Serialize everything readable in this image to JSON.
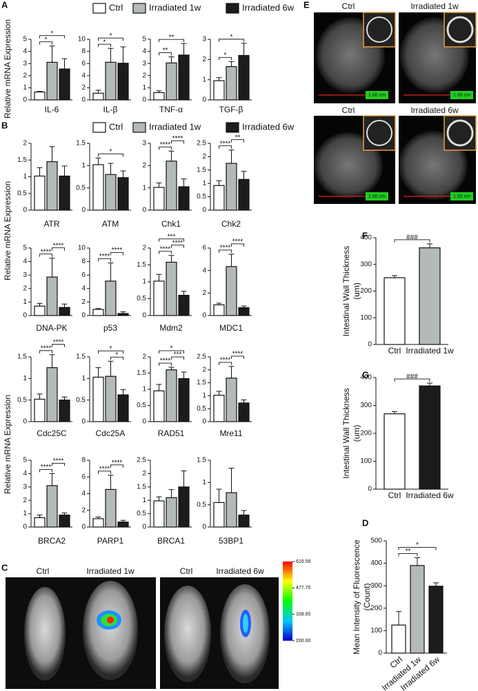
{
  "figure": {
    "panel_letters": [
      "A",
      "B",
      "C",
      "E",
      "F",
      "G",
      "D"
    ],
    "axis_titles": [
      "Relative mRNA Expression",
      "Relative mRNA Expression",
      "Relative mRNA Expression"
    ],
    "legends": [
      [
        {
          "name": "Ctrl",
          "color": "#ffffff"
        },
        {
          "name": "Irradiated 1w",
          "color": "#b3bab7"
        },
        {
          "name": "Irradiated 6w",
          "color": "#1c1c1c"
        }
      ],
      [
        {
          "name": "Ctrl",
          "color": "#ffffff"
        },
        {
          "name": "Irradiated 1w",
          "color": "#b3bab7"
        },
        {
          "name": "Irradiated 6w",
          "color": "#1c1c1c"
        }
      ]
    ],
    "imaging_c": {
      "labels": [
        "Ctrl",
        "Irradiated 1w",
        "Ctrl",
        "Irradiated 6w"
      ],
      "colorbar_ticks": [
        616.56,
        {
          "value": 477.7,
          "label": "477.70"
        },
        338.85,
        {
          "value": 200,
          "label": "200.00"
        }
      ]
    },
    "imaging_e": {
      "labels": [
        "Ctrl",
        "Irradiated 1w",
        "Ctrl",
        "Irradiated 6w"
      ],
      "scale_labels": [
        "1.00 cm",
        "1.00 cm",
        "1.00 cm",
        "1.00 cm"
      ]
    }
  },
  "chart_data": [
    {
      "type": "bar",
      "xlabel": "IL-6",
      "values": [
        0.65,
        3.1,
        2.55
      ],
      "errors": [
        0.05,
        1.35,
        0.85
      ],
      "colors": [
        "#ffffff",
        "#b3bab7",
        "#1c1c1c"
      ],
      "ylim": [
        0,
        5
      ],
      "yticks": [
        0,
        1,
        2,
        3,
        4,
        5
      ],
      "significance": [
        {
          "between": [
            0,
            1
          ],
          "label": "*"
        },
        {
          "between": [
            0,
            2
          ],
          "label": "*"
        }
      ]
    },
    {
      "type": "bar",
      "xlabel": "IL-β",
      "values": [
        1.1,
        6.2,
        6.05
      ],
      "errors": [
        0.5,
        2.3,
        2.7
      ],
      "colors": [
        "#ffffff",
        "#b3bab7",
        "#1c1c1c"
      ],
      "ylim": [
        0,
        10
      ],
      "yticks": [
        0,
        2,
        4,
        6,
        8,
        10
      ],
      "significance": [
        {
          "between": [
            0,
            1
          ],
          "label": "*"
        },
        {
          "between": [
            0,
            2
          ],
          "label": "*"
        }
      ]
    },
    {
      "type": "bar",
      "xlabel": "TNF-α",
      "values": [
        0.6,
        3.05,
        3.7
      ],
      "errors": [
        0.15,
        0.5,
        0.95
      ],
      "colors": [
        "#ffffff",
        "#b3bab7",
        "#1c1c1c"
      ],
      "ylim": [
        0,
        5
      ],
      "yticks": [
        0,
        1,
        2,
        3,
        4,
        5
      ],
      "significance": [
        {
          "between": [
            0,
            1
          ],
          "label": "**"
        },
        {
          "between": [
            0,
            2
          ],
          "label": "**"
        }
      ]
    },
    {
      "type": "bar",
      "xlabel": "TGF-β",
      "values": [
        0.95,
        1.65,
        2.2
      ],
      "errors": [
        0.15,
        0.25,
        0.6
      ],
      "colors": [
        "#ffffff",
        "#b3bab7",
        "#1c1c1c"
      ],
      "ylim": [
        0,
        3
      ],
      "yticks": [
        0,
        1,
        2,
        3
      ],
      "significance": [
        {
          "between": [
            0,
            1
          ],
          "label": "*"
        },
        {
          "between": [
            0,
            2
          ],
          "label": "*"
        }
      ]
    },
    {
      "type": "bar",
      "xlabel": "ATR",
      "values": [
        1.02,
        1.45,
        1.02
      ],
      "errors": [
        0.25,
        0.45,
        0.3
      ],
      "colors": [
        "#ffffff",
        "#b3bab7",
        "#1c1c1c"
      ],
      "ylim": [
        0,
        2
      ],
      "yticks": [
        0,
        0.5,
        1,
        1.5,
        2
      ],
      "significance": []
    },
    {
      "type": "bar",
      "xlabel": "ATM",
      "values": [
        1.02,
        0.8,
        0.73
      ],
      "errors": [
        0.15,
        0.25,
        0.15
      ],
      "colors": [
        "#ffffff",
        "#b3bab7",
        "#1c1c1c"
      ],
      "ylim": [
        0,
        1.5
      ],
      "yticks": [
        0,
        0.5,
        1,
        1.5
      ],
      "significance": [
        {
          "between": [
            0,
            2
          ],
          "label": "*"
        }
      ]
    },
    {
      "type": "bar",
      "xlabel": "Chk1",
      "values": [
        1.02,
        2.2,
        1.05
      ],
      "errors": [
        0.2,
        0.45,
        0.35
      ],
      "colors": [
        "#ffffff",
        "#b3bab7",
        "#1c1c1c"
      ],
      "ylim": [
        0,
        3
      ],
      "yticks": [
        0,
        1,
        2,
        3
      ],
      "significance": [
        {
          "between": [
            0,
            1
          ],
          "label": "****"
        },
        {
          "between": [
            1,
            2
          ],
          "label": "****"
        }
      ]
    },
    {
      "type": "bar",
      "xlabel": "Chk2",
      "values": [
        0.92,
        1.75,
        1.15
      ],
      "errors": [
        0.18,
        0.5,
        0.3
      ],
      "colors": [
        "#ffffff",
        "#b3bab7",
        "#1c1c1c"
      ],
      "ylim": [
        0,
        2.5
      ],
      "yticks": [
        0,
        0.5,
        1,
        1.5,
        2,
        2.5
      ],
      "significance": [
        {
          "between": [
            0,
            1
          ],
          "label": "****"
        },
        {
          "between": [
            1,
            2
          ],
          "label": "**"
        }
      ]
    },
    {
      "type": "bar",
      "xlabel": "DNA-PK",
      "values": [
        0.7,
        2.85,
        0.6
      ],
      "errors": [
        0.2,
        1.4,
        0.25
      ],
      "colors": [
        "#ffffff",
        "#b3bab7",
        "#1c1c1c"
      ],
      "ylim": [
        0,
        5
      ],
      "yticks": [
        0,
        1,
        2,
        3,
        4,
        5
      ],
      "significance": [
        {
          "between": [
            0,
            1
          ],
          "label": "****"
        },
        {
          "between": [
            1,
            2
          ],
          "label": "****"
        }
      ]
    },
    {
      "type": "bar",
      "xlabel": "p53",
      "values": [
        0.9,
        5.1,
        0.3
      ],
      "errors": [
        0.15,
        2.7,
        0.25
      ],
      "colors": [
        "#ffffff",
        "#b3bab7",
        "#1c1c1c"
      ],
      "ylim": [
        0,
        10
      ],
      "yticks": [
        0,
        2,
        4,
        6,
        8,
        10
      ],
      "significance": [
        {
          "between": [
            0,
            1
          ],
          "label": "****"
        },
        {
          "between": [
            1,
            2
          ],
          "label": "****"
        }
      ]
    },
    {
      "type": "bar",
      "xlabel": "Mdm2",
      "values": [
        1.02,
        1.58,
        0.6
      ],
      "errors": [
        0.2,
        0.2,
        0.12
      ],
      "colors": [
        "#ffffff",
        "#b3bab7",
        "#1c1c1c"
      ],
      "ylim": [
        0,
        2
      ],
      "yticks": [
        0,
        0.5,
        1,
        1.5,
        2
      ],
      "significance": [
        {
          "between": [
            0,
            1
          ],
          "label": "****"
        },
        {
          "between": [
            1,
            2
          ],
          "label": "****"
        },
        {
          "between": [
            0,
            2
          ],
          "label": "***"
        }
      ]
    },
    {
      "type": "bar",
      "xlabel": "MDC1",
      "values": [
        0.95,
        4.35,
        0.7
      ],
      "errors": [
        0.15,
        1.1,
        0.15
      ],
      "colors": [
        "#ffffff",
        "#b3bab7",
        "#1c1c1c"
      ],
      "ylim": [
        0,
        6
      ],
      "yticks": [
        0,
        2,
        4,
        6
      ],
      "significance": [
        {
          "between": [
            0,
            1
          ],
          "label": "****"
        },
        {
          "between": [
            1,
            2
          ],
          "label": "****"
        }
      ]
    },
    {
      "type": "bar",
      "xlabel": "Cdc25C",
      "values": [
        0.52,
        1.25,
        0.5
      ],
      "errors": [
        0.12,
        0.3,
        0.07
      ],
      "colors": [
        "#ffffff",
        "#b3bab7",
        "#1c1c1c"
      ],
      "ylim": [
        0,
        1.5
      ],
      "yticks": [
        0,
        0.5,
        1,
        1.5
      ],
      "significance": [
        {
          "between": [
            0,
            1
          ],
          "label": "****"
        },
        {
          "between": [
            1,
            2
          ],
          "label": "****"
        }
      ]
    },
    {
      "type": "bar",
      "xlabel": "Cdc25A",
      "values": [
        1.03,
        1.05,
        0.62
      ],
      "errors": [
        0.22,
        0.35,
        0.12
      ],
      "colors": [
        "#ffffff",
        "#b3bab7",
        "#1c1c1c"
      ],
      "ylim": [
        0,
        1.5
      ],
      "yticks": [
        0,
        0.5,
        1,
        1.5
      ],
      "significance": [
        {
          "between": [
            1,
            2
          ],
          "label": "*"
        },
        {
          "between": [
            0,
            2
          ],
          "label": "*"
        }
      ]
    },
    {
      "type": "bar",
      "xlabel": "RAD51",
      "values": [
        0.95,
        1.6,
        1.33
      ],
      "errors": [
        0.2,
        0.08,
        0.2
      ],
      "colors": [
        "#ffffff",
        "#b3bab7",
        "#1c1c1c"
      ],
      "ylim": [
        0,
        2
      ],
      "yticks": [
        0,
        0.5,
        1,
        1.5,
        2
      ],
      "significance": [
        {
          "between": [
            0,
            1
          ],
          "label": "****"
        },
        {
          "between": [
            1,
            2
          ],
          "label": "***"
        },
        {
          "between": [
            0,
            2
          ],
          "label": "*"
        }
      ]
    },
    {
      "type": "bar",
      "xlabel": "Mre11",
      "values": [
        1.02,
        1.68,
        0.72
      ],
      "errors": [
        0.15,
        0.45,
        0.12
      ],
      "colors": [
        "#ffffff",
        "#b3bab7",
        "#1c1c1c"
      ],
      "ylim": [
        0,
        2.5
      ],
      "yticks": [
        0,
        0.5,
        1,
        1.5,
        2,
        2.5
      ],
      "significance": [
        {
          "between": [
            0,
            1
          ],
          "label": "****"
        },
        {
          "between": [
            1,
            2
          ],
          "label": "****"
        }
      ]
    },
    {
      "type": "bar",
      "xlabel": "BRCA2",
      "values": [
        0.7,
        3.1,
        0.9
      ],
      "errors": [
        0.2,
        0.9,
        0.15
      ],
      "colors": [
        "#ffffff",
        "#b3bab7",
        "#1c1c1c"
      ],
      "ylim": [
        0,
        5
      ],
      "yticks": [
        0,
        1,
        2,
        3,
        4,
        5
      ],
      "significance": [
        {
          "between": [
            0,
            1
          ],
          "label": "****"
        },
        {
          "between": [
            1,
            2
          ],
          "label": "****"
        }
      ]
    },
    {
      "type": "bar",
      "xlabel": "PARP1",
      "values": [
        1.0,
        4.5,
        0.6
      ],
      "errors": [
        0.2,
        1.7,
        0.2
      ],
      "colors": [
        "#ffffff",
        "#b3bab7",
        "#1c1c1c"
      ],
      "ylim": [
        0,
        8
      ],
      "yticks": [
        0,
        2,
        4,
        6,
        8
      ],
      "significance": [
        {
          "between": [
            0,
            1
          ],
          "label": "****"
        },
        {
          "between": [
            1,
            2
          ],
          "label": "****"
        }
      ]
    },
    {
      "type": "bar",
      "xlabel": "BRCA1",
      "values": [
        0.98,
        1.1,
        1.5
      ],
      "errors": [
        0.15,
        0.3,
        0.6
      ],
      "colors": [
        "#ffffff",
        "#b3bab7",
        "#1c1c1c"
      ],
      "ylim": [
        0,
        2.5
      ],
      "yticks": [
        0,
        0.5,
        1,
        1.5,
        2,
        2.5
      ],
      "significance": []
    },
    {
      "type": "bar",
      "xlabel": "53BP1",
      "values": [
        0.55,
        0.77,
        0.27
      ],
      "errors": [
        0.3,
        0.55,
        0.1
      ],
      "colors": [
        "#ffffff",
        "#b3bab7",
        "#1c1c1c"
      ],
      "ylim": [
        0,
        1.5
      ],
      "yticks": [
        0,
        0.5,
        1,
        1.5
      ],
      "significance": []
    },
    {
      "type": "bar",
      "categories": [
        "Ctrl",
        "Irradiated 1w"
      ],
      "ylabel": [
        "Intestinal Wall Thickness",
        "(um)"
      ],
      "values": [
        250,
        362
      ],
      "errors": [
        8,
        15
      ],
      "colors": [
        "#ffffff",
        "#b3bab7"
      ],
      "ylim": [
        0,
        400
      ],
      "yticks": [
        0,
        100,
        200,
        300,
        400
      ],
      "significance": [
        {
          "between": [
            0,
            1
          ],
          "label": "###"
        }
      ]
    },
    {
      "type": "bar",
      "categories": [
        "Ctrl",
        "Irradiated 6w"
      ],
      "ylabel": [
        "Intestinal Wall Thickness",
        "(um)"
      ],
      "values": [
        270,
        370
      ],
      "errors": [
        8,
        10
      ],
      "colors": [
        "#ffffff",
        "#1c1c1c"
      ],
      "ylim": [
        0,
        400
      ],
      "yticks": [
        0,
        100,
        200,
        300,
        400
      ],
      "significance": [
        {
          "between": [
            0,
            1
          ],
          "label": "###"
        }
      ]
    },
    {
      "type": "bar",
      "categories": [
        "Ctrl",
        "Irradiated 1w",
        "Irradiated 6w"
      ],
      "ylabel": [
        "Mean Intensity of Fluorescence",
        "(Count)"
      ],
      "values": [
        125,
        390,
        298
      ],
      "errors": [
        60,
        35,
        15
      ],
      "colors": [
        "#ffffff",
        "#b3bab7",
        "#1c1c1c"
      ],
      "ylim": [
        0,
        500
      ],
      "yticks": [
        0,
        100,
        200,
        300,
        400,
        500
      ],
      "significance": [
        {
          "between": [
            0,
            1
          ],
          "label": "**"
        },
        {
          "between": [
            0,
            2
          ],
          "label": "*"
        }
      ]
    }
  ]
}
